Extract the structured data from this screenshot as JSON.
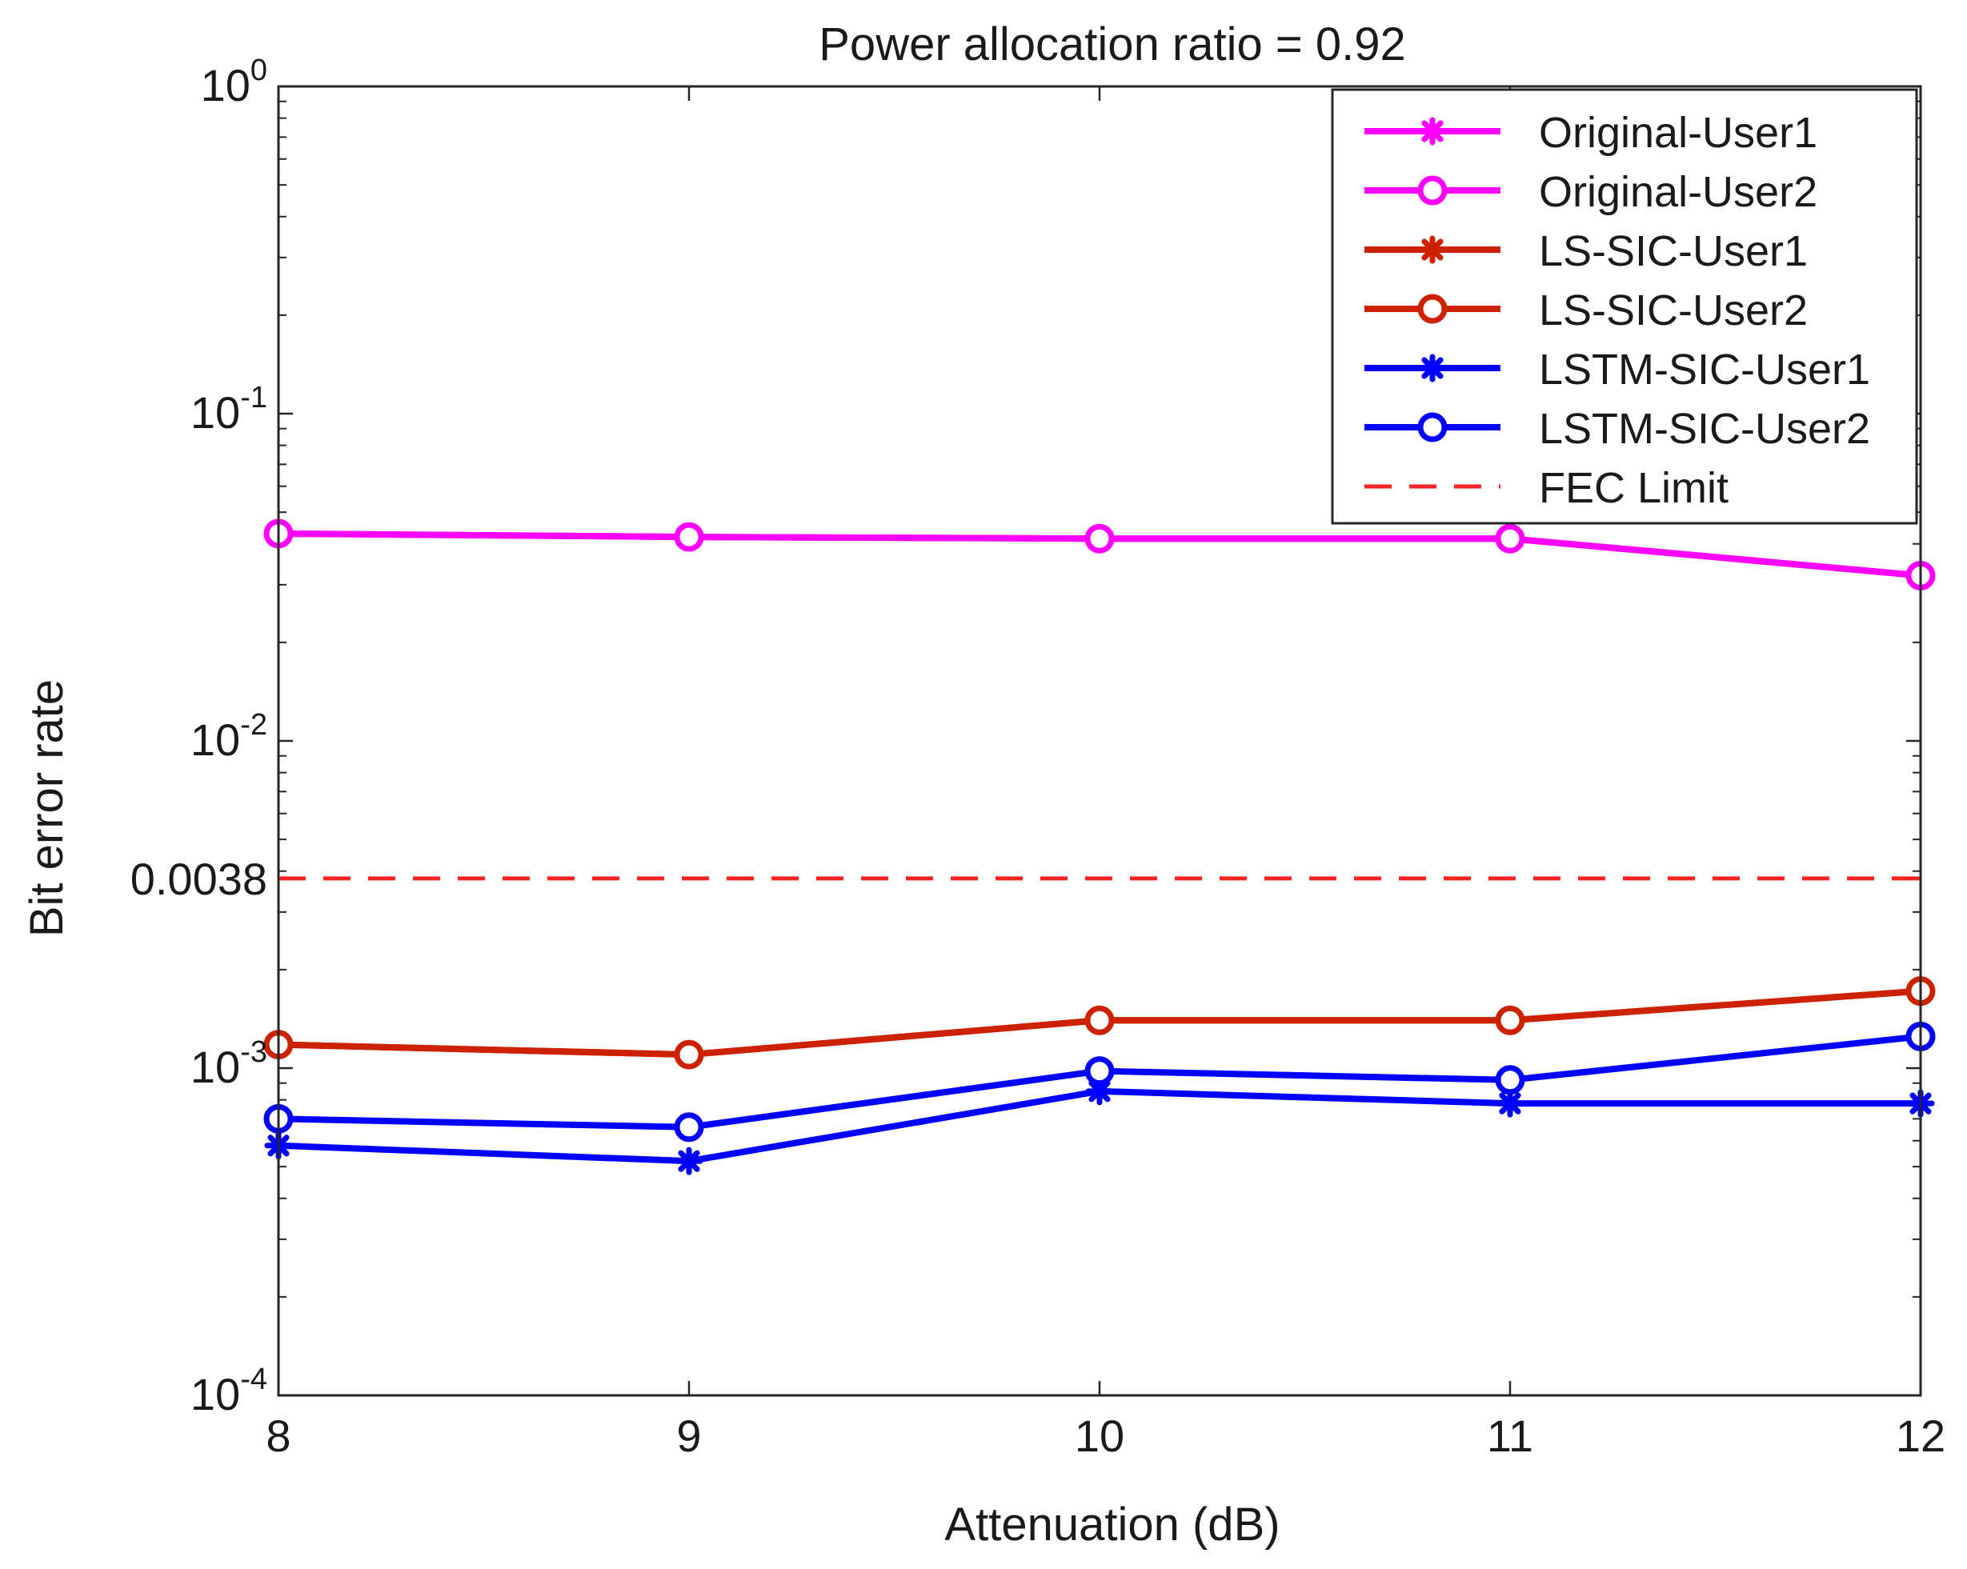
{
  "chart_data": {
    "type": "line",
    "title": "Power allocation ratio = 0.92",
    "xlabel": "Attenuation (dB)",
    "ylabel": "Bit error rate",
    "x": [
      8,
      9,
      10,
      11,
      12
    ],
    "xticks": [
      8,
      9,
      10,
      11,
      12
    ],
    "xlim": [
      8,
      12
    ],
    "yscale": "log",
    "ylim": [
      0.0001,
      1
    ],
    "yticks": [
      {
        "value": 1,
        "base": "10",
        "exp": "0"
      },
      {
        "value": 0.1,
        "base": "10",
        "exp": "-1"
      },
      {
        "value": 0.01,
        "base": "10",
        "exp": "-2"
      },
      {
        "value": 0.001,
        "base": "10",
        "exp": "-3"
      },
      {
        "value": 0.0001,
        "base": "10",
        "exp": "-4"
      }
    ],
    "extra_ytick": {
      "value": 0.0038,
      "label": "0.0038"
    },
    "legend_position": "top-right",
    "series": [
      {
        "name": "Original-User1",
        "color": "#ff00ff",
        "marker": "asterisk",
        "dashed": false,
        "values": [
          0.043,
          0.042,
          0.0415,
          0.0415,
          0.032
        ]
      },
      {
        "name": "Original-User2",
        "color": "#ff00ff",
        "marker": "circle",
        "dashed": false,
        "values": [
          0.043,
          0.042,
          0.0415,
          0.0415,
          0.032
        ]
      },
      {
        "name": "LS-SIC-User1",
        "color": "#cc2200",
        "marker": "asterisk",
        "dashed": false,
        "values": [
          0.00118,
          0.0011,
          0.0014,
          0.0014,
          0.00172
        ]
      },
      {
        "name": "LS-SIC-User2",
        "color": "#cc2200",
        "marker": "circle",
        "dashed": false,
        "values": [
          0.00118,
          0.0011,
          0.0014,
          0.0014,
          0.00172
        ]
      },
      {
        "name": "LSTM-SIC-User1",
        "color": "#0000ff",
        "marker": "asterisk",
        "dashed": false,
        "values": [
          0.00058,
          0.00052,
          0.00085,
          0.00078,
          0.00078
        ]
      },
      {
        "name": "LSTM-SIC-User2",
        "color": "#0000ff",
        "marker": "circle",
        "dashed": false,
        "values": [
          0.0007,
          0.00066,
          0.00098,
          0.00092,
          0.00125
        ]
      },
      {
        "name": "FEC Limit",
        "color": "#ff2222",
        "marker": "none",
        "dashed": true,
        "values": [
          0.0038,
          0.0038,
          0.0038,
          0.0038,
          0.0038
        ]
      }
    ]
  }
}
